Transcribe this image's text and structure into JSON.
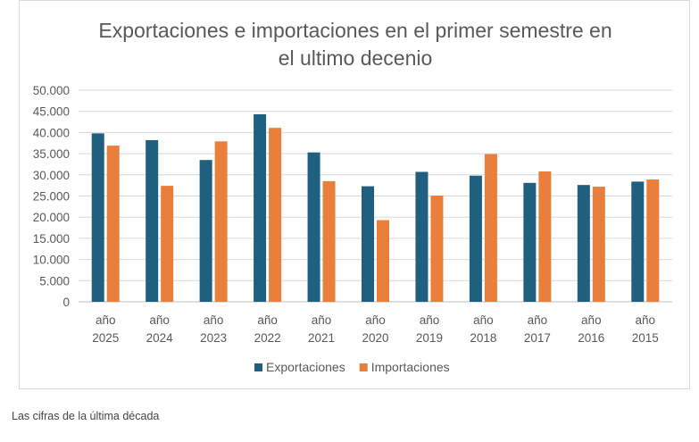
{
  "chart_data": {
    "type": "bar",
    "title_line1": "Exportaciones e importaciones en el primer semestre en",
    "title_line2": "el ultimo decenio",
    "categories": [
      [
        "año",
        "2025"
      ],
      [
        "año",
        "2024"
      ],
      [
        "año",
        "2023"
      ],
      [
        "año",
        "2022"
      ],
      [
        "año",
        "2021"
      ],
      [
        "año",
        "2020"
      ],
      [
        "año",
        "2019"
      ],
      [
        "año",
        "2018"
      ],
      [
        "año",
        "2017"
      ],
      [
        "año",
        "2016"
      ],
      [
        "año",
        "2015"
      ]
    ],
    "series": [
      {
        "name": "Exportaciones",
        "color": "#1f5f7f",
        "values": [
          39800,
          38200,
          33500,
          44300,
          35300,
          27300,
          30700,
          29800,
          28100,
          27600,
          28400
        ]
      },
      {
        "name": "Importaciones",
        "color": "#e97f3a",
        "values": [
          36900,
          27400,
          37900,
          41100,
          28500,
          19300,
          25100,
          34900,
          30800,
          27200,
          28900
        ]
      }
    ],
    "ylim": [
      0,
      50000
    ],
    "y_ticks": [
      0,
      5000,
      10000,
      15000,
      20000,
      25000,
      30000,
      35000,
      40000,
      45000,
      50000
    ],
    "y_tick_labels": [
      "0",
      "5.000",
      "10.000",
      "15.000",
      "20.000",
      "25.000",
      "30.000",
      "35.000",
      "40.000",
      "45.000",
      "50.000"
    ],
    "grid": true,
    "legend_position": "bottom"
  },
  "caption": "Las cifras de la última década"
}
